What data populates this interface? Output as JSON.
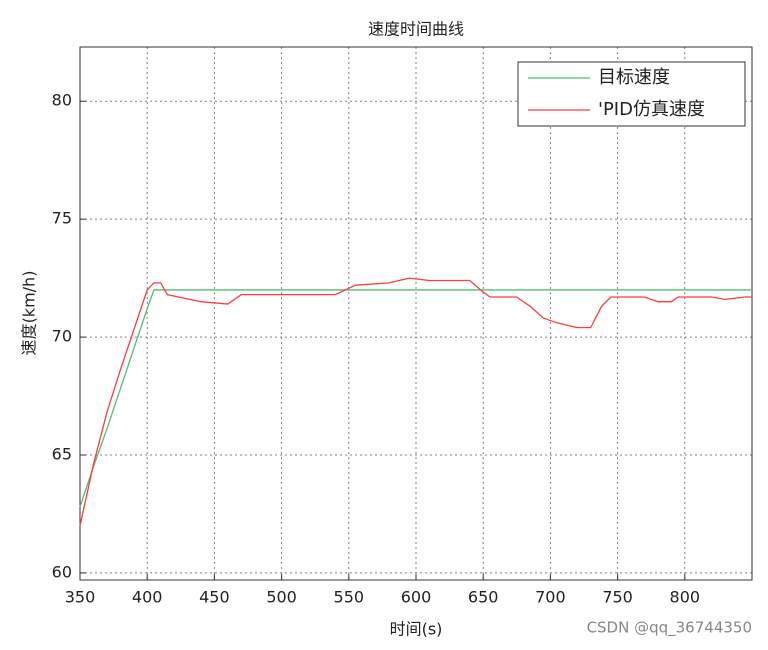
{
  "chart_data": {
    "type": "line",
    "title": "速度时间曲线",
    "x_label": "时间(s)",
    "y_label": "速度(km/h)",
    "x": [
      350,
      360,
      370,
      380,
      390,
      400,
      405,
      410,
      415,
      440,
      460,
      470,
      540,
      555,
      580,
      595,
      610,
      640,
      648,
      655,
      675,
      685,
      695,
      705,
      720,
      730,
      738,
      745,
      770,
      780,
      790,
      795,
      820,
      830,
      845,
      850
    ],
    "series": [
      {
        "name": "目标速度",
        "color": "#4fbf6f",
        "values": [
          62.8,
          64.5,
          66.1,
          67.8,
          69.5,
          71.2,
          72,
          72,
          72,
          72,
          72,
          72,
          72,
          72,
          72,
          72,
          72,
          72,
          72,
          72,
          72,
          72,
          72,
          72,
          72,
          72,
          72,
          72,
          72,
          72,
          72,
          72,
          72,
          72,
          72,
          72
        ]
      },
      {
        "name": "'PID仿真速度",
        "color": "#ff3b3b",
        "values": [
          62,
          64.6,
          66.8,
          68.6,
          70.3,
          72,
          72.3,
          72.3,
          71.8,
          71.5,
          71.4,
          71.8,
          71.8,
          72.2,
          72.3,
          72.5,
          72.4,
          72.4,
          72,
          71.7,
          71.7,
          71.3,
          70.8,
          70.6,
          70.4,
          70.4,
          71.3,
          71.7,
          71.7,
          71.5,
          71.5,
          71.7,
          71.7,
          71.6,
          71.7,
          71.7
        ]
      }
    ],
    "xlim": [
      350,
      850
    ],
    "xticks": [
      350,
      400,
      450,
      500,
      550,
      600,
      650,
      700,
      750,
      800
    ],
    "ylim": [
      59.7,
      82.3
    ],
    "yticks": [
      60,
      65,
      70,
      75,
      80
    ],
    "grid": true,
    "legend": "upper right",
    "watermark": "CSDN @qq_36744350"
  }
}
